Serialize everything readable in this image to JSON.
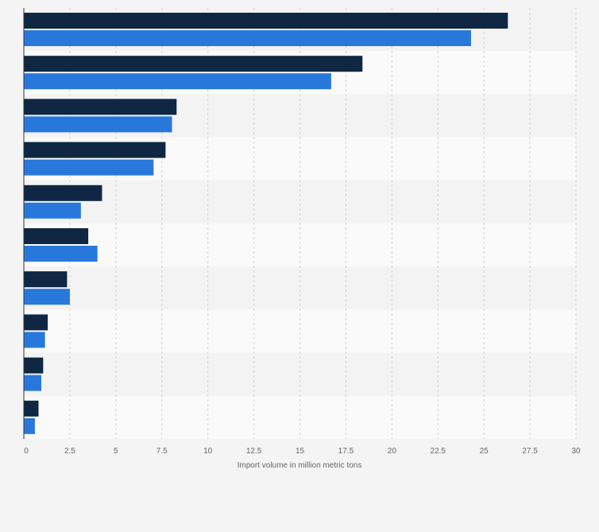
{
  "chart_data": {
    "type": "bar",
    "orientation": "horizontal",
    "categories": [
      "",
      "",
      "",
      "",
      "",
      "",
      "",
      "",
      "",
      ""
    ],
    "series": [
      {
        "values": [
          26.3,
          18.4,
          8.3,
          7.7,
          4.25,
          3.5,
          2.35,
          1.3,
          1.05,
          0.8
        ]
      },
      {
        "values": [
          24.3,
          16.7,
          8.05,
          7.05,
          3.1,
          4.0,
          2.5,
          1.15,
          0.95,
          0.6
        ]
      }
    ],
    "xlabel": "Import volume in million metric tons",
    "ylabel": "",
    "xlim": [
      0,
      30
    ],
    "xticks": [
      "0",
      "2.5",
      "5",
      "7.5",
      "10",
      "12.5",
      "15",
      "17.5",
      "20",
      "22.5",
      "25",
      "27.5",
      "30"
    ],
    "grid": "vertical dashed",
    "colors": {
      "series_1": "#0f2742",
      "series_2": "#2878dc",
      "band_dark": "#f3f3f3",
      "band_light": "#fafafa",
      "grid": "#d2d2d2",
      "axis": "#333333",
      "text": "#666666"
    }
  }
}
